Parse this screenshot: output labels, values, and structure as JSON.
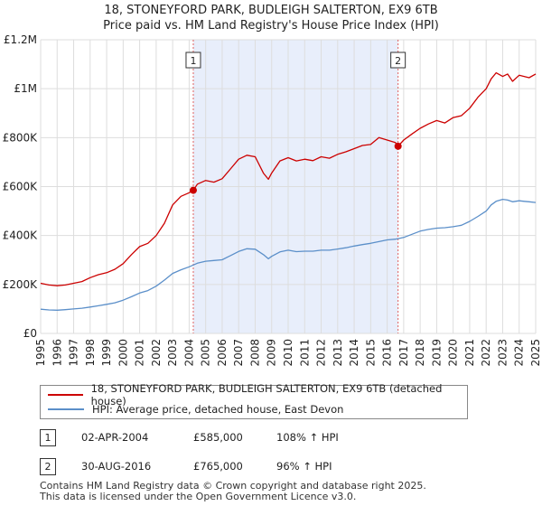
{
  "title_line1": "18, STONEYFORD PARK, BUDLEIGH SALTERTON, EX9 6TB",
  "title_line2": "Price paid vs. HM Land Registry's House Price Index (HPI)",
  "colors": {
    "property": "#cc0000",
    "hpi": "#5b8fc9",
    "shade": "#e8eefb",
    "marker_line": "#e06060",
    "grid": "#dddddd"
  },
  "chart_data": {
    "type": "line",
    "x_range": [
      1995,
      2025
    ],
    "ylim": [
      0,
      1200000
    ],
    "y_ticks": [
      {
        "value": 0,
        "label": "£0"
      },
      {
        "value": 200000,
        "label": "£200K"
      },
      {
        "value": 400000,
        "label": "£400K"
      },
      {
        "value": 600000,
        "label": "£600K"
      },
      {
        "value": 800000,
        "label": "£800K"
      },
      {
        "value": 1000000,
        "label": "£1M"
      },
      {
        "value": 1200000,
        "label": "£1.2M"
      }
    ],
    "x_ticks": [
      "1995",
      "1996",
      "1997",
      "1998",
      "1999",
      "2000",
      "2001",
      "2002",
      "2003",
      "2004",
      "2005",
      "2006",
      "2007",
      "2008",
      "2009",
      "2010",
      "2011",
      "2012",
      "2013",
      "2014",
      "2015",
      "2016",
      "2017",
      "2018",
      "2019",
      "2020",
      "2021",
      "2022",
      "2023",
      "2024",
      "2025"
    ],
    "shaded_range": [
      2004.25,
      2016.66
    ],
    "series": [
      {
        "name": "18, STONEYFORD PARK, BUDLEIGH SALTERTON, EX9 6TB (detached house)",
        "x": [
          1995,
          1995.5,
          1996,
          1996.5,
          1997,
          1997.5,
          1998,
          1998.5,
          1999,
          1999.5,
          2000,
          2000.5,
          2001,
          2001.5,
          2002,
          2002.5,
          2003,
          2003.5,
          2004,
          2004.25,
          2004.5,
          2005,
          2005.5,
          2006,
          2006.5,
          2007,
          2007.5,
          2008,
          2008.5,
          2008.8,
          2009,
          2009.5,
          2010,
          2010.5,
          2011,
          2011.5,
          2012,
          2012.5,
          2013,
          2013.5,
          2014,
          2014.5,
          2015,
          2015.5,
          2016,
          2016.5,
          2016.66,
          2017,
          2017.5,
          2018,
          2018.5,
          2019,
          2019.5,
          2020,
          2020.5,
          2021,
          2021.5,
          2022,
          2022.3,
          2022.6,
          2023,
          2023.3,
          2023.6,
          2024,
          2024.3,
          2024.6,
          2025
        ],
        "values": [
          205000,
          198000,
          195000,
          198000,
          205000,
          212000,
          228000,
          240000,
          248000,
          262000,
          285000,
          322000,
          355000,
          368000,
          400000,
          450000,
          525000,
          560000,
          575000,
          585000,
          610000,
          625000,
          618000,
          632000,
          672000,
          712000,
          728000,
          722000,
          655000,
          630000,
          655000,
          705000,
          718000,
          705000,
          712000,
          706000,
          722000,
          716000,
          732000,
          742000,
          755000,
          768000,
          772000,
          800000,
          790000,
          780000,
          765000,
          790000,
          815000,
          838000,
          856000,
          870000,
          860000,
          882000,
          890000,
          920000,
          965000,
          1000000,
          1040000,
          1065000,
          1050000,
          1060000,
          1030000,
          1055000,
          1050000,
          1045000,
          1060000
        ]
      },
      {
        "name": "HPI: Average price, detached house, East Devon",
        "x": [
          1995,
          1995.5,
          1996,
          1996.5,
          1997,
          1997.5,
          1998,
          1998.5,
          1999,
          1999.5,
          2000,
          2000.5,
          2001,
          2001.5,
          2002,
          2002.5,
          2003,
          2003.5,
          2004,
          2004.5,
          2005,
          2005.5,
          2006,
          2006.5,
          2007,
          2007.5,
          2008,
          2008.5,
          2008.8,
          2009,
          2009.5,
          2010,
          2010.5,
          2011,
          2011.5,
          2012,
          2012.5,
          2013,
          2013.5,
          2014,
          2014.5,
          2015,
          2015.5,
          2016,
          2016.5,
          2017,
          2017.5,
          2018,
          2018.5,
          2019,
          2019.5,
          2020,
          2020.5,
          2021,
          2021.5,
          2022,
          2022.3,
          2022.6,
          2023,
          2023.3,
          2023.6,
          2024,
          2024.3,
          2024.6,
          2025
        ],
        "values": [
          99000,
          96000,
          95000,
          97000,
          100000,
          103000,
          108000,
          113000,
          119000,
          125000,
          136000,
          150000,
          165000,
          175000,
          193000,
          218000,
          245000,
          260000,
          272000,
          287000,
          295000,
          298000,
          301000,
          318000,
          335000,
          346000,
          344000,
          322000,
          305000,
          315000,
          333000,
          340000,
          334000,
          336000,
          336000,
          340000,
          340000,
          345000,
          350000,
          357000,
          363000,
          368000,
          375000,
          382000,
          385000,
          392000,
          405000,
          418000,
          425000,
          430000,
          432000,
          436000,
          442000,
          458000,
          478000,
          500000,
          525000,
          540000,
          548000,
          545000,
          538000,
          542000,
          540000,
          538000,
          535000
        ]
      }
    ],
    "sales": [
      {
        "label": "1",
        "x": 2004.25,
        "value": 585000
      },
      {
        "label": "2",
        "x": 2016.66,
        "value": 765000
      }
    ]
  },
  "legend": {
    "property_label": "18, STONEYFORD PARK, BUDLEIGH SALTERTON, EX9 6TB (detached house)",
    "hpi_label": "HPI: Average price, detached house, East Devon"
  },
  "sales_table": [
    {
      "num": "1",
      "date": "02-APR-2004",
      "price": "£585,000",
      "hpi": "108% ↑ HPI"
    },
    {
      "num": "2",
      "date": "30-AUG-2016",
      "price": "£765,000",
      "hpi": "96% ↑ HPI"
    }
  ],
  "footer_line1": "Contains HM Land Registry data © Crown copyright and database right 2025.",
  "footer_line2": "This data is licensed under the Open Government Licence v3.0."
}
